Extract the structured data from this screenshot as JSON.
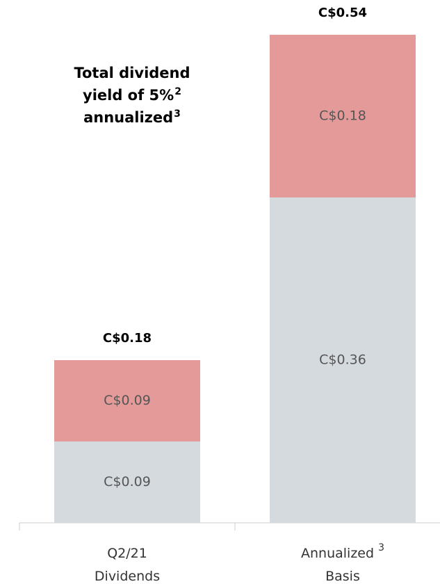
{
  "chart_data": {
    "type": "stacked_bar",
    "categories": [
      {
        "lines": [
          "Q2/21",
          "Dividends"
        ]
      },
      {
        "lines": [
          "Annualized",
          "Basis"
        ],
        "sup": "3"
      }
    ],
    "series": [
      {
        "color": "#d5dadf",
        "values": [
          0.09,
          0.36
        ],
        "value_labels": [
          "C$0.09",
          "C$0.36"
        ]
      },
      {
        "color": "#e59a9a",
        "values": [
          0.09,
          0.18
        ],
        "value_labels": [
          "C$0.09",
          "C$0.18"
        ]
      }
    ],
    "totals": [
      0.18,
      0.54
    ],
    "total_labels": [
      "C$0.18",
      "C$0.54"
    ],
    "ylim": [
      0,
      0.54
    ],
    "annotation": [
      {
        "text": "Total dividend"
      },
      {
        "text": "yield of 5%",
        "sup": "2"
      },
      {
        "text": "annualized",
        "sup": "3"
      }
    ]
  }
}
